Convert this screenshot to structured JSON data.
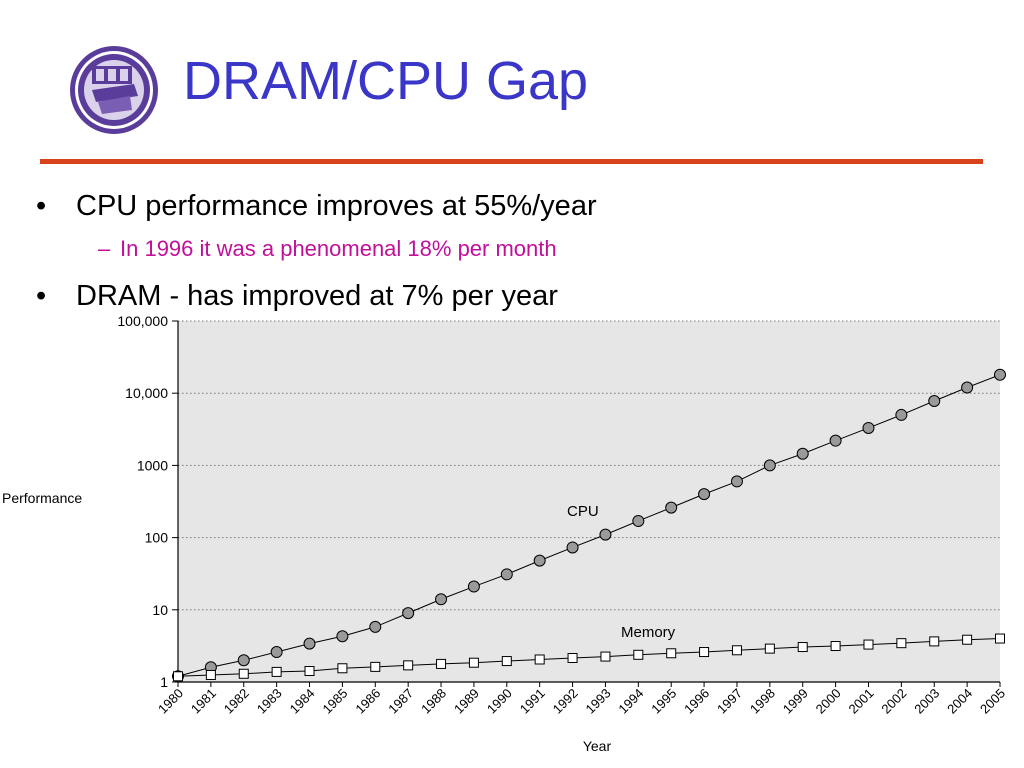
{
  "slide": {
    "title": "DRAM/CPU Gap",
    "logo_icon": "university-seal-icon",
    "bullets": [
      {
        "marker": "•",
        "text": "CPU performance improves at 55%/year"
      },
      {
        "marker": "–",
        "text": "In 1996 it was a phenomenal 18% per month"
      },
      {
        "marker": "•",
        "text": "DRAM - has improved at 7% per year"
      }
    ],
    "colors": {
      "title": "#3a36c8",
      "rule": "#d9431c",
      "sub_bullet": "#c0109a",
      "plot_bg": "#e6e6e6"
    }
  },
  "chart_data": {
    "type": "line",
    "xlabel": "Year",
    "ylabel": "Performance",
    "yscale": "log",
    "ylim": [
      1,
      100000
    ],
    "yticks": [
      1,
      10,
      100,
      1000,
      10000,
      100000
    ],
    "ytick_labels": [
      "1",
      "10",
      "100",
      "1000",
      "10,000",
      "100,000"
    ],
    "grid": true,
    "categories": [
      "1980",
      "1981",
      "1982",
      "1983",
      "1984",
      "1985",
      "1986",
      "1987",
      "1988",
      "1989",
      "1990",
      "1991",
      "1992",
      "1993",
      "1994",
      "1995",
      "1996",
      "1997",
      "1998",
      "1999",
      "2000",
      "2001",
      "2002",
      "2003",
      "2004",
      "2005"
    ],
    "series": [
      {
        "name": "CPU",
        "marker": "circle",
        "values": [
          1.2,
          1.6,
          2.0,
          2.6,
          3.4,
          4.3,
          5.8,
          9,
          14,
          21,
          31,
          48,
          73,
          110,
          170,
          260,
          400,
          600,
          1000,
          1450,
          2200,
          3300,
          5000,
          7800,
          12000,
          18000
        ]
      },
      {
        "name": "Memory",
        "marker": "square",
        "values": [
          1.2,
          1.25,
          1.3,
          1.38,
          1.42,
          1.55,
          1.62,
          1.7,
          1.78,
          1.85,
          1.95,
          2.05,
          2.15,
          2.25,
          2.38,
          2.5,
          2.6,
          2.75,
          2.9,
          3.05,
          3.15,
          3.3,
          3.45,
          3.65,
          3.85,
          4.0
        ]
      }
    ]
  }
}
